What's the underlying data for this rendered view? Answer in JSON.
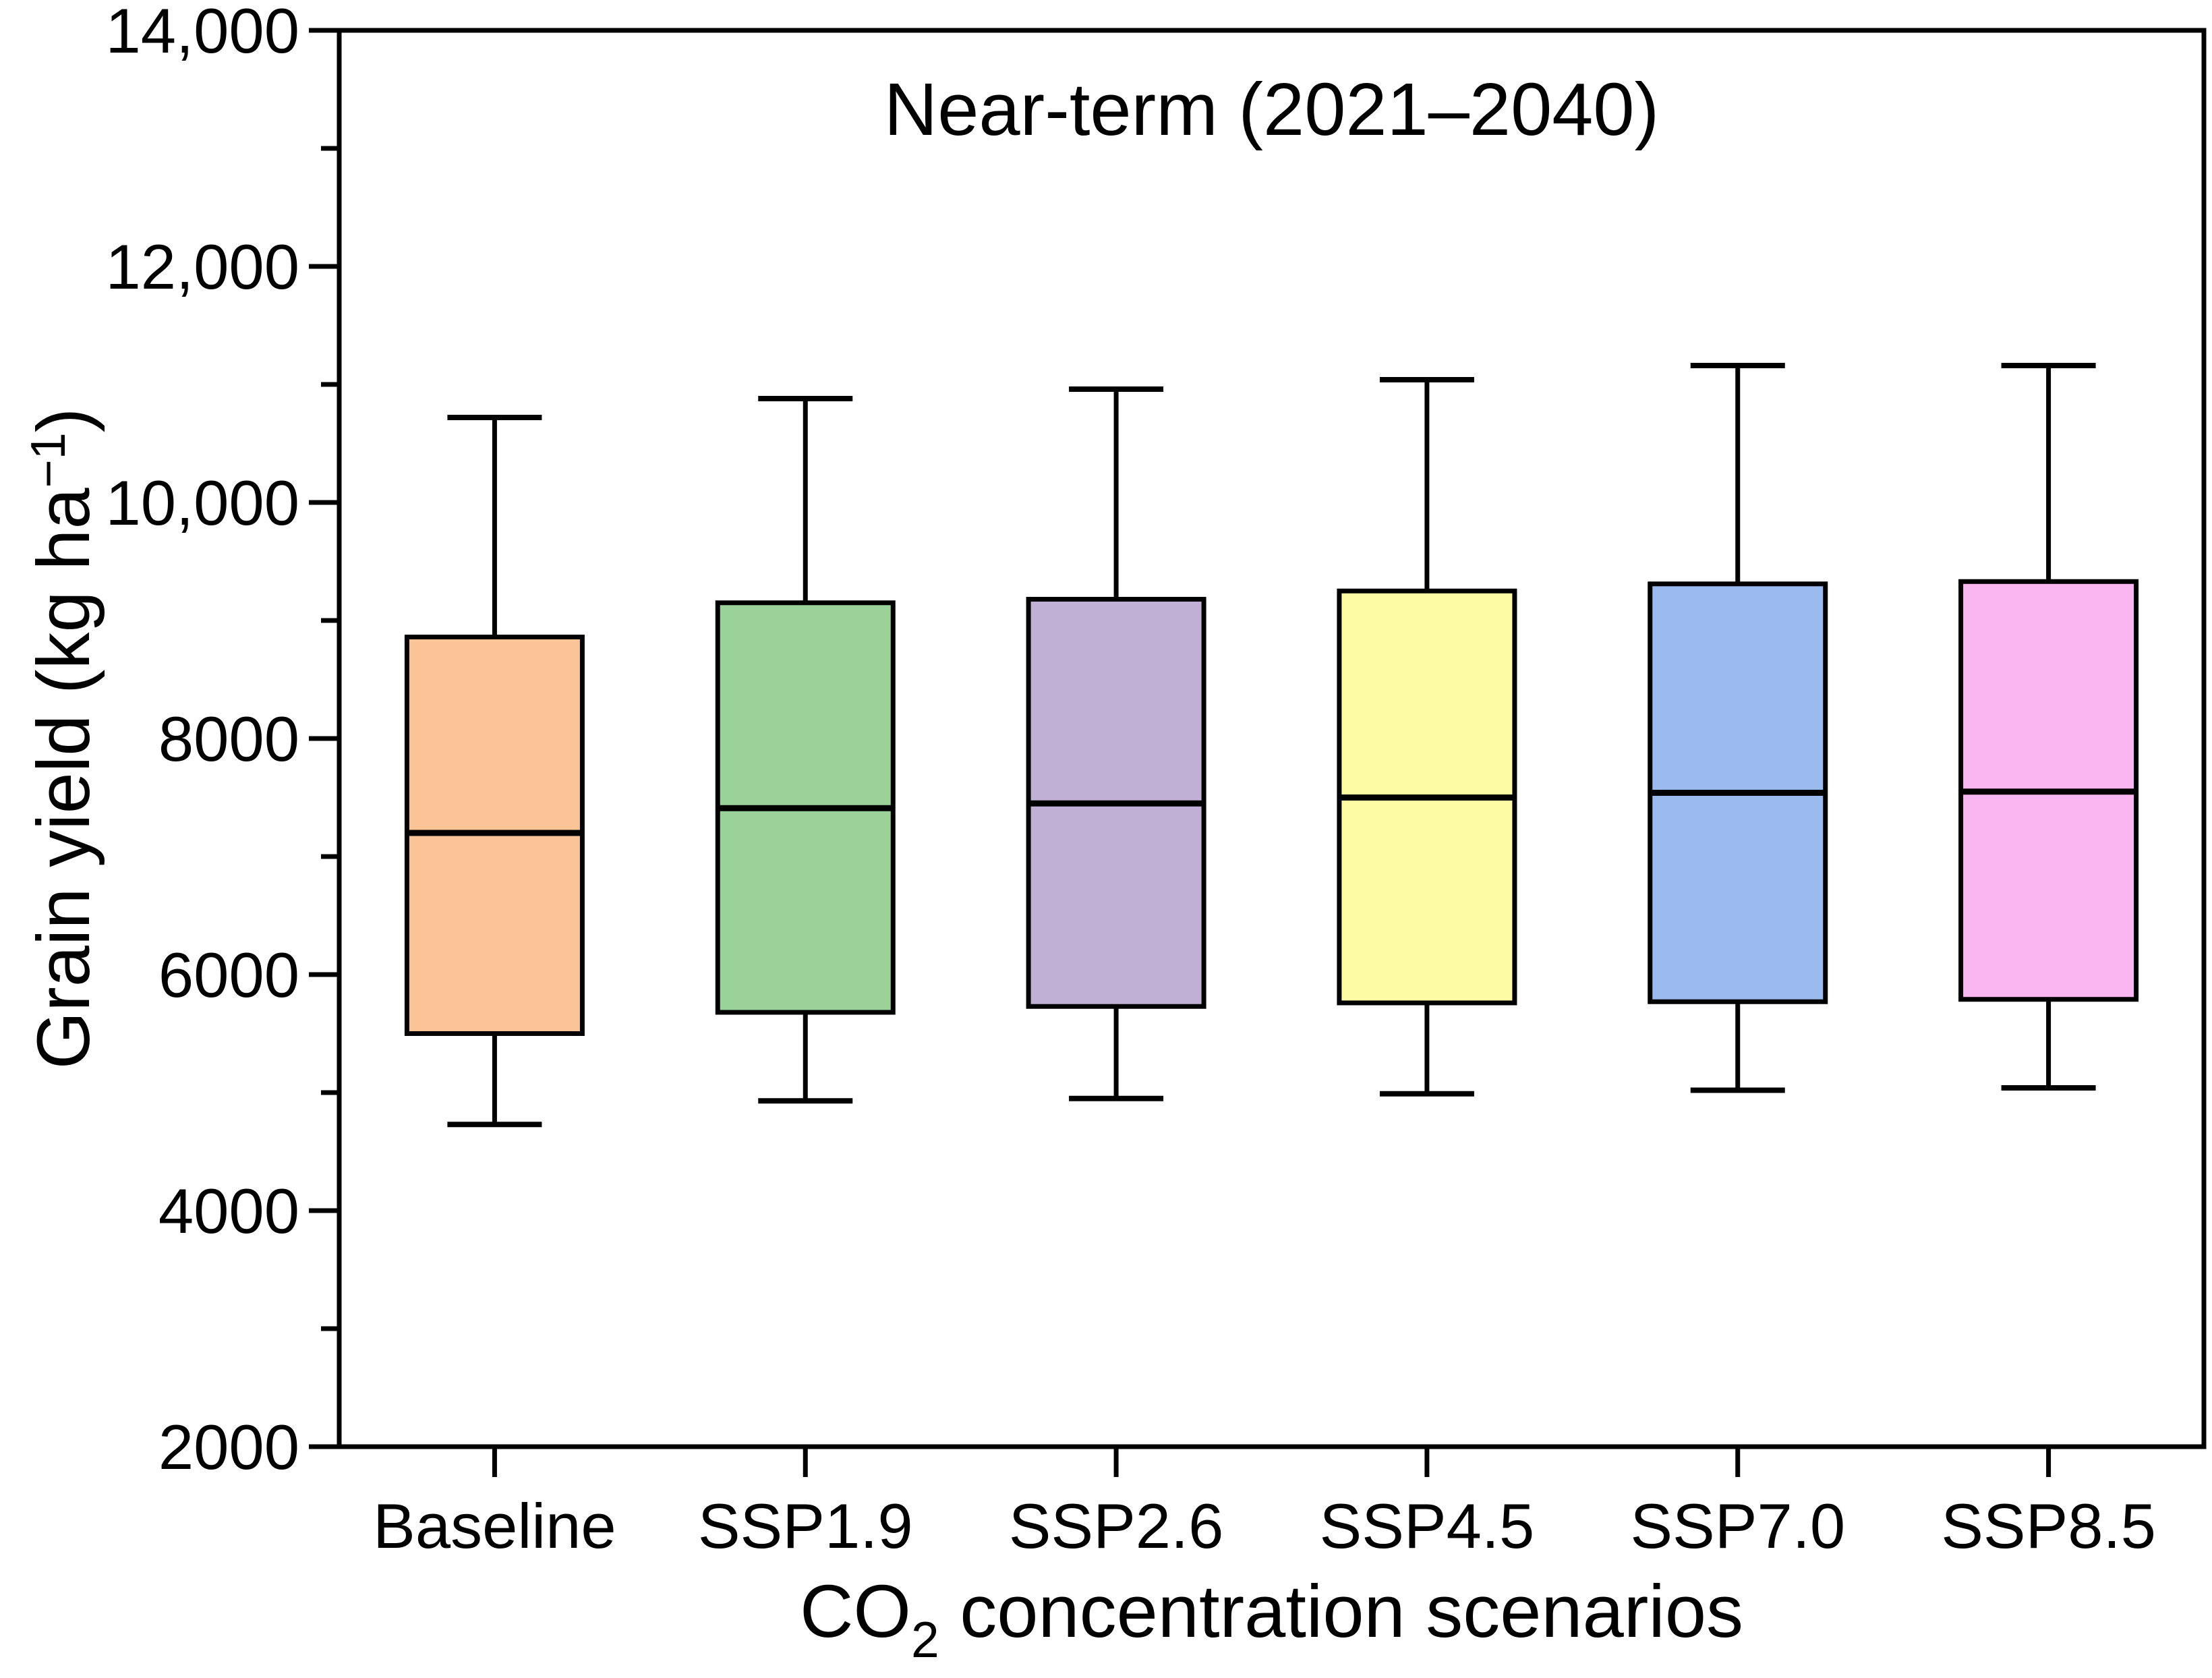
{
  "figure": {
    "title": "Near-term (2021–2040)",
    "y_axis": {
      "label_prefix": "Grain yield (kg ha",
      "label_superscript": "−1",
      "label_suffix": ")"
    },
    "x_axis": {
      "label_prefix": "CO",
      "label_subscript": "2",
      "label_suffix": " concentration scenarios"
    }
  },
  "chart_data": {
    "type": "box",
    "title": "Near-term (2021–2040)",
    "xlabel": "CO2 concentration scenarios",
    "ylabel": "Grain yield (kg ha−1)",
    "ylim": [
      2000,
      14000
    ],
    "grid": false,
    "legend": "none",
    "y_major_ticks": [
      {
        "value": 14000,
        "label": "14,000"
      },
      {
        "value": 12000,
        "label": "12,000"
      },
      {
        "value": 10000,
        "label": "10,000"
      },
      {
        "value": 8000,
        "label": "8000"
      },
      {
        "value": 6000,
        "label": "6000"
      },
      {
        "value": 4000,
        "label": "4000"
      },
      {
        "value": 2000,
        "label": "2000"
      }
    ],
    "y_minor_tick_values": [
      13000,
      11000,
      9000,
      7000,
      5000,
      3000
    ],
    "categories": [
      "Baseline",
      "SSP1.9",
      "SSP2.6",
      "SSP4.5",
      "SSP7.0",
      "SSP8.5"
    ],
    "series": [
      {
        "name": "Baseline",
        "color": "#FAC496",
        "whisker_low": 4730,
        "q1": 5500,
        "median": 7200,
        "q3": 8860,
        "whisker_high": 10720
      },
      {
        "name": "SSP1.9",
        "color": "#9AD29A",
        "whisker_low": 4930,
        "q1": 5680,
        "median": 7410,
        "q3": 9150,
        "whisker_high": 10880
      },
      {
        "name": "SSP2.6",
        "color": "#C0B0D5",
        "whisker_low": 4950,
        "q1": 5730,
        "median": 7450,
        "q3": 9180,
        "whisker_high": 10960
      },
      {
        "name": "SSP4.5",
        "color": "#FDFBA3",
        "whisker_low": 4990,
        "q1": 5760,
        "median": 7500,
        "q3": 9250,
        "whisker_high": 11040
      },
      {
        "name": "SSP7.0",
        "color": "#9BBAEE",
        "whisker_low": 5020,
        "q1": 5770,
        "median": 7540,
        "q3": 9310,
        "whisker_high": 11160
      },
      {
        "name": "SSP8.5",
        "color": "#FAB6F1",
        "whisker_low": 5040,
        "q1": 5790,
        "median": 7550,
        "q3": 9330,
        "whisker_high": 11160
      }
    ]
  }
}
